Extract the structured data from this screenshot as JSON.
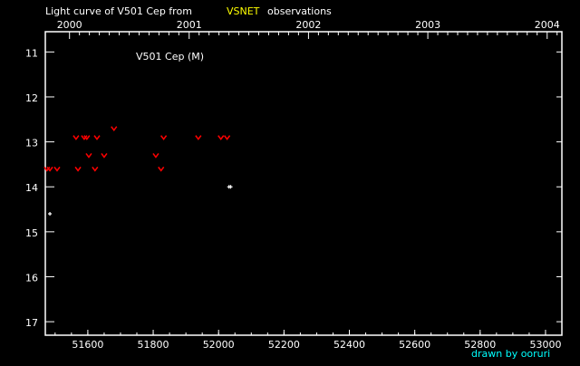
{
  "title_prefix": "Light curve of V501 Cep from",
  "title_source": "VSNET",
  "title_suffix": "observations",
  "credit": "drawn by ooruri",
  "colors": {
    "background": "#000000",
    "axes": "#ffffff",
    "upper_limit": "#ff0000",
    "positive": "#ffffff",
    "source": "#ffff00",
    "credit": "#00ffff"
  },
  "chart_data": {
    "type": "scatter",
    "title": "Light curve of V501 Cep from VSNET observations",
    "legend_label": "V501 Cep (M)",
    "xlim": [
      51470,
      53050
    ],
    "ylim": [
      17.3,
      10.55
    ],
    "y_inverted": true,
    "x_ticks": [
      51600,
      51800,
      52000,
      52200,
      52400,
      52600,
      52800,
      53000
    ],
    "y_ticks": [
      11,
      12,
      13,
      14,
      15,
      16,
      17
    ],
    "top_axis_years": [
      {
        "label": "2000",
        "jd": 51544
      },
      {
        "label": "2001",
        "jd": 51910
      },
      {
        "label": "2002",
        "jd": 52275
      },
      {
        "label": "2003",
        "jd": 52640
      },
      {
        "label": "2004",
        "jd": 53005
      }
    ],
    "series": [
      {
        "kind": "upper_limit",
        "points": [
          [
            51680,
            12.7
          ],
          [
            51564,
            12.9
          ],
          [
            51589,
            12.9
          ],
          [
            51597,
            12.9
          ],
          [
            51628,
            12.9
          ],
          [
            51832,
            12.9
          ],
          [
            51938,
            12.9
          ],
          [
            52007,
            12.9
          ],
          [
            52026,
            12.9
          ],
          [
            51603,
            13.3
          ],
          [
            51650,
            13.3
          ],
          [
            51808,
            13.3
          ],
          [
            51475,
            13.6
          ],
          [
            51484,
            13.6
          ],
          [
            51506,
            13.6
          ],
          [
            51570,
            13.6
          ],
          [
            51622,
            13.6
          ],
          [
            51824,
            13.6
          ]
        ]
      },
      {
        "kind": "positive",
        "points": [
          [
            51484,
            14.6
          ],
          [
            52032,
            14.0
          ],
          [
            52037,
            14.0
          ]
        ]
      }
    ]
  }
}
